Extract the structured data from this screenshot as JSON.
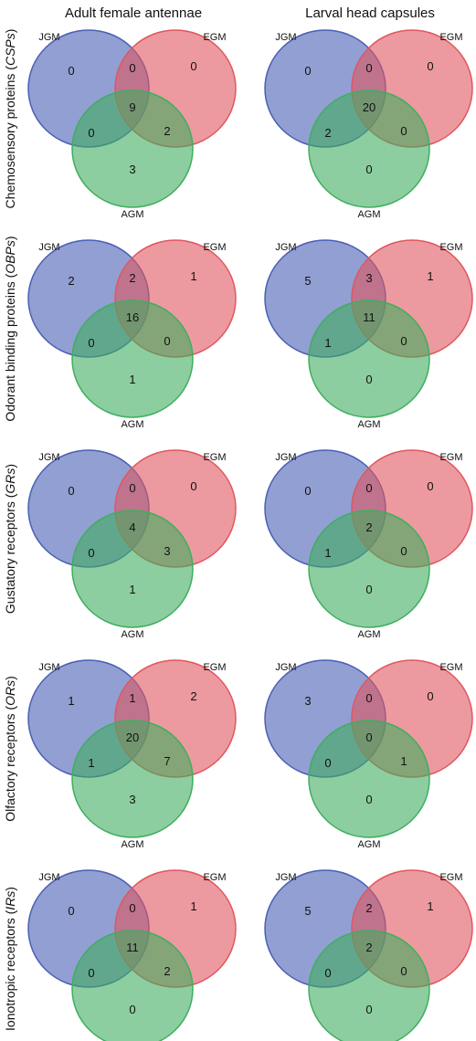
{
  "column_headers": [
    "Adult female antennae",
    "Larval head capsules"
  ],
  "set_labels": {
    "a": "JGM",
    "b": "EGM",
    "c": "AGM"
  },
  "set_colors": {
    "a": "#4a5fb5",
    "b": "#e0575f",
    "c": "#3fae5f"
  },
  "rows": [
    {
      "label": "Chemosensory proteins (",
      "label_italic": "CSPs",
      "label_close": ")",
      "panels": [
        {
          "a": "0",
          "b": "0",
          "c": "3",
          "ab": "0",
          "ac": "0",
          "bc": "2",
          "abc": "9"
        },
        {
          "a": "0",
          "b": "0",
          "c": "0",
          "ab": "0",
          "ac": "2",
          "bc": "0",
          "abc": "20"
        }
      ]
    },
    {
      "label": "Odorant binding proteins (",
      "label_italic": "OBPs",
      "label_close": ")",
      "panels": [
        {
          "a": "2",
          "b": "1",
          "c": "1",
          "ab": "2",
          "ac": "0",
          "bc": "0",
          "abc": "16"
        },
        {
          "a": "5",
          "b": "1",
          "c": "0",
          "ab": "3",
          "ac": "1",
          "bc": "0",
          "abc": "11"
        }
      ]
    },
    {
      "label": "Gustatory receptors (",
      "label_italic": "GRs",
      "label_close": ")",
      "panels": [
        {
          "a": "0",
          "b": "0",
          "c": "1",
          "ab": "0",
          "ac": "0",
          "bc": "3",
          "abc": "4"
        },
        {
          "a": "0",
          "b": "0",
          "c": "0",
          "ab": "0",
          "ac": "1",
          "bc": "0",
          "abc": "2"
        }
      ]
    },
    {
      "label": "Olfactory receptors (",
      "label_italic": "ORs",
      "label_close": ")",
      "panels": [
        {
          "a": "1",
          "b": "2",
          "c": "3",
          "ab": "1",
          "ac": "1",
          "bc": "7",
          "abc": "20"
        },
        {
          "a": "3",
          "b": "0",
          "c": "0",
          "ab": "0",
          "ac": "0",
          "bc": "1",
          "abc": "0"
        }
      ]
    },
    {
      "label": "Ionotropic receptors (",
      "label_italic": "IRs",
      "label_close": ")",
      "panels": [
        {
          "a": "0",
          "b": "1",
          "c": "0",
          "ab": "0",
          "ac": "0",
          "bc": "2",
          "abc": "11"
        },
        {
          "a": "5",
          "b": "1",
          "c": "0",
          "ab": "2",
          "ac": "0",
          "bc": "0",
          "abc": "2"
        }
      ]
    }
  ]
}
